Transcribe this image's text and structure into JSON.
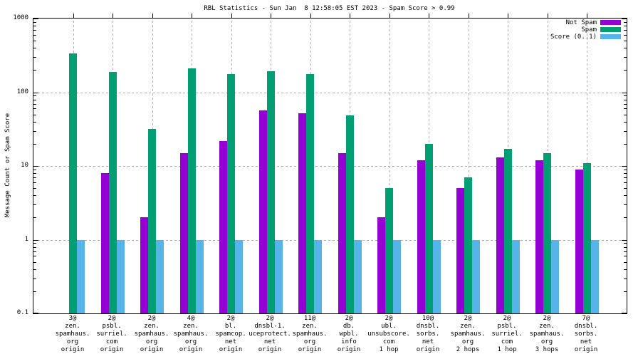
{
  "chart_data": {
    "type": "bar",
    "title": "RBL Statistics - Sun Jan  8 12:58:05 EST 2023 - Spam Score > 0.99",
    "ylabel": "Message Count or Spam Score",
    "yscale": "log",
    "ylim": [
      0.1,
      1000
    ],
    "ytick_values": [
      0.1,
      1,
      10,
      100,
      1000
    ],
    "ytick_labels": [
      "0.1",
      "1",
      "10",
      "100",
      "1000"
    ],
    "grid": true,
    "gridline_values": [
      1,
      10,
      100
    ],
    "legend_position": "top-right-inside",
    "categories": [
      [
        "3@",
        "zen.",
        "spamhaus.",
        "org",
        "origin"
      ],
      [
        "2@",
        "psbl.",
        "surriel.",
        "com",
        "origin"
      ],
      [
        "2@",
        "zen.",
        "spamhaus.",
        "org",
        "origin"
      ],
      [
        "4@",
        "zen.",
        "spamhaus.",
        "org",
        "origin"
      ],
      [
        "2@",
        "bl.",
        "spamcop.",
        "net",
        "origin"
      ],
      [
        "2@",
        "dnsbl-1.",
        "uceprotect.",
        "net",
        "origin"
      ],
      [
        "11@",
        "zen.",
        "spamhaus.",
        "org",
        "origin"
      ],
      [
        "2@",
        "db.",
        "wpbl.",
        "info",
        "origin"
      ],
      [
        "2@",
        "ubl.",
        "unsubscore.",
        "com",
        "1 hop"
      ],
      [
        "10@",
        "dnsbl.",
        "sorbs.",
        "net",
        "origin"
      ],
      [
        "2@",
        "zen.",
        "spamhaus.",
        "org",
        "2 hops"
      ],
      [
        "2@",
        "psbl.",
        "surriel.",
        "com",
        "1 hop"
      ],
      [
        "2@",
        "zen.",
        "spamhaus.",
        "org",
        "3 hops"
      ],
      [
        "7@",
        "dnsbl.",
        "sorbs.",
        "net",
        "origin"
      ]
    ],
    "series": [
      {
        "name": "Not Spam",
        "color": "#9400d3",
        "values": [
          0,
          8,
          2,
          15,
          22,
          57,
          52,
          15,
          2,
          12,
          5,
          13,
          12,
          9
        ]
      },
      {
        "name": "Spam",
        "color": "#009e73",
        "values": [
          335,
          190,
          32,
          210,
          176,
          193,
          178,
          49,
          5,
          20,
          7,
          17,
          15,
          11
        ]
      },
      {
        "name": "Score (0..1)",
        "color": "#56b4e9",
        "values": [
          1,
          1,
          1,
          1,
          1,
          1,
          1,
          1,
          1,
          1,
          1,
          1,
          1,
          1
        ]
      }
    ]
  }
}
